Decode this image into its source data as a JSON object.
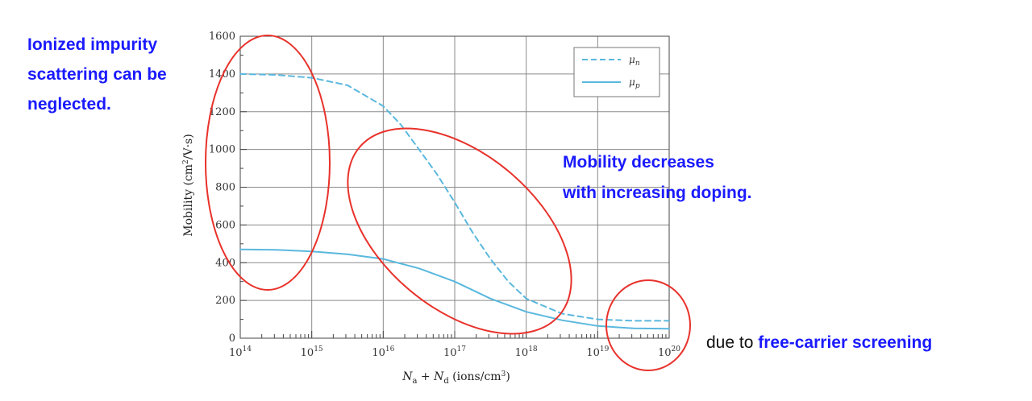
{
  "chart_data": {
    "type": "line",
    "xlabel_parts": {
      "n": "N",
      "a": "a",
      "plus": " + ",
      "d": "d",
      "unit": " (ions/cm",
      "unit_sup": "3",
      "unit_end": ")"
    },
    "ylabel_parts": {
      "main": "Mobility (cm",
      "sup": "2",
      "end": "/V·s)"
    },
    "x_scale": "log10",
    "xlim_exponent": [
      14,
      20
    ],
    "x_tick_base": "10",
    "x_tick_exponents": [
      "14",
      "15",
      "16",
      "17",
      "18",
      "19",
      "20"
    ],
    "ylim": [
      0,
      1600
    ],
    "y_ticks": [
      "0",
      "200",
      "400",
      "600",
      "800",
      "1000",
      "1200",
      "1400",
      "1600"
    ],
    "grid": true,
    "legend_position": "top-right",
    "series": [
      {
        "name": "μ",
        "subscript": "n",
        "style": "dashed",
        "color": "#5ab8de",
        "log10_x": [
          14,
          14.5,
          15,
          15.5,
          16,
          16.25,
          16.5,
          16.75,
          17,
          17.25,
          17.5,
          17.75,
          18,
          18.5,
          19,
          19.5,
          20
        ],
        "y": [
          1400,
          1395,
          1380,
          1340,
          1230,
          1130,
          1000,
          870,
          720,
          560,
          420,
          300,
          210,
          130,
          100,
          92,
          92
        ]
      },
      {
        "name": "μ",
        "subscript": "p",
        "style": "solid",
        "color": "#5ab8de",
        "log10_x": [
          14,
          14.5,
          15,
          15.5,
          16,
          16.5,
          17,
          17.5,
          18,
          18.5,
          19,
          19.5,
          20
        ],
        "y": [
          470,
          468,
          460,
          445,
          420,
          370,
          300,
          210,
          140,
          95,
          65,
          52,
          50
        ]
      }
    ]
  },
  "annotations": {
    "left_lines": [
      "Ionized impurity",
      "scattering can be",
      "neglected."
    ],
    "right_lines": [
      "Mobility decreases",
      "with increasing doping."
    ],
    "bottom_prefix": "due to ",
    "bottom_highlight": "free-carrier screening"
  },
  "colors": {
    "ellipse": "#e8322b",
    "annotation_blue": "#1a1aff",
    "grid": "#8a8a8a",
    "curve": "#5ab8de"
  }
}
